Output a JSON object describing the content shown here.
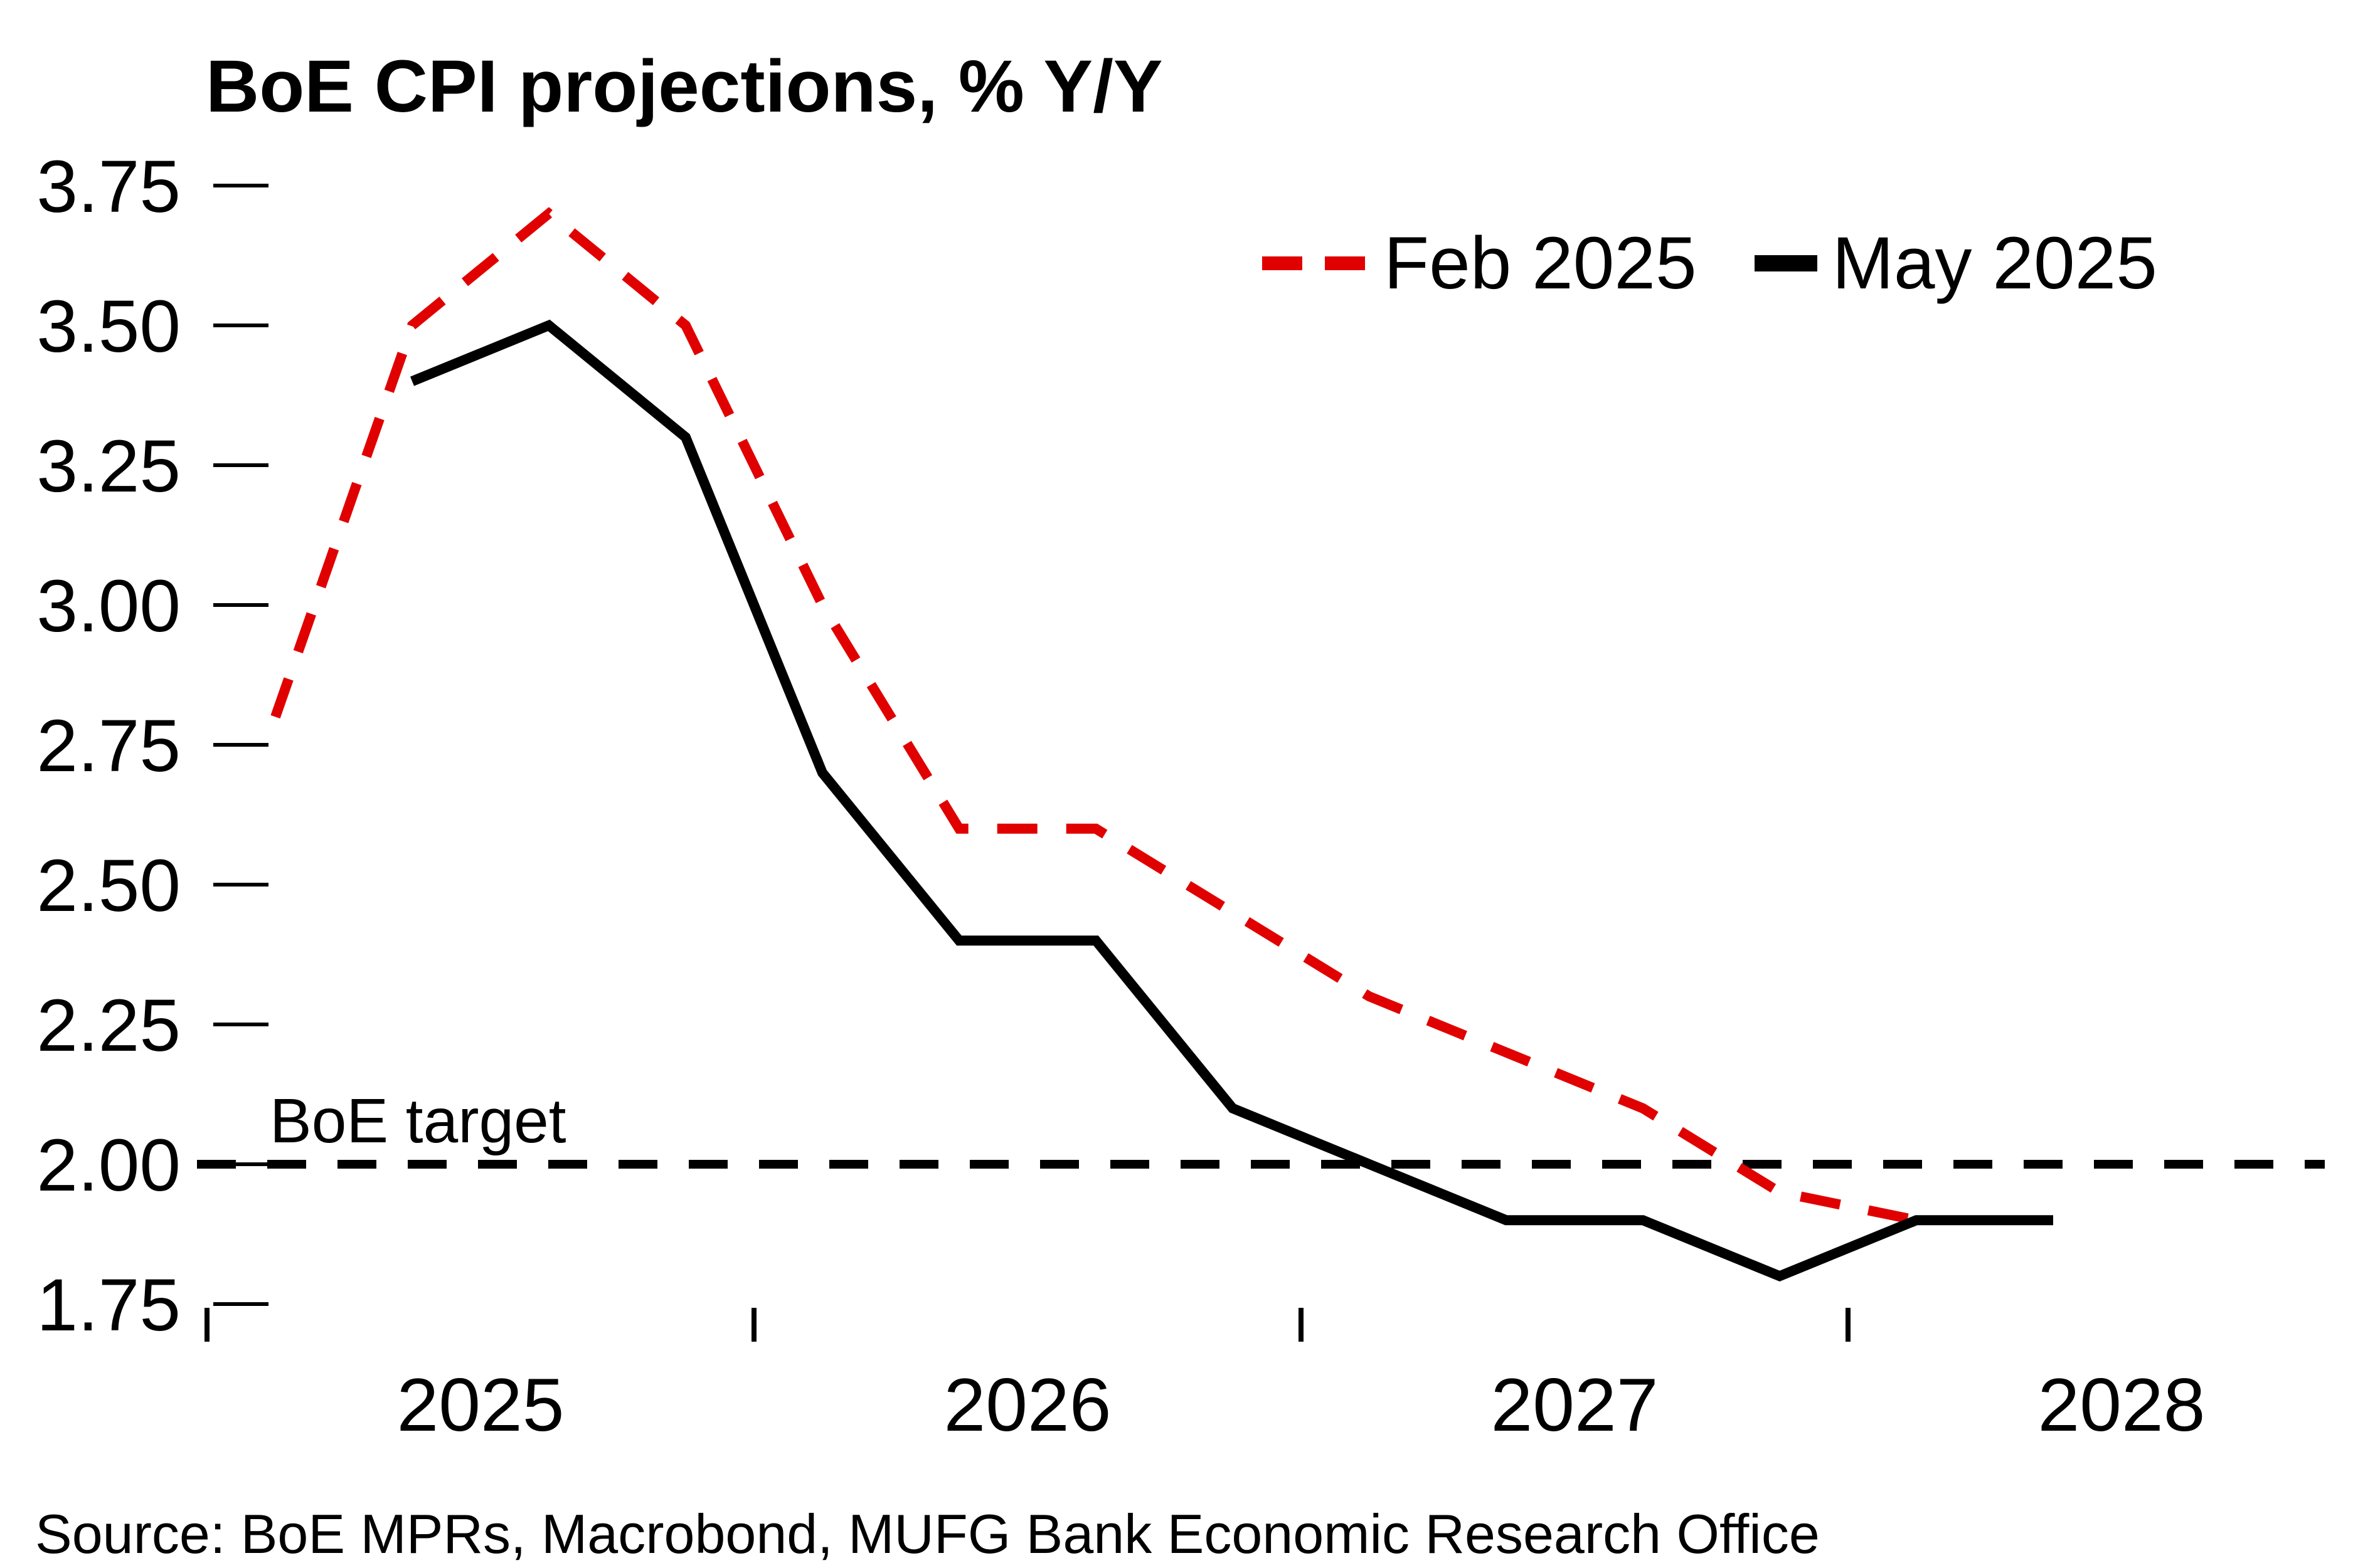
{
  "title": "BoE CPI projections, % Y/Y",
  "source": "Source: BoE MPRs, Macrobond, MUFG Bank Economic Research Office",
  "target_label": "BoE target",
  "legend": {
    "feb_label": "Feb 2025",
    "may_label": "May 2025"
  },
  "colors": {
    "feb": "#e00000",
    "may": "#000000",
    "target": "#000000",
    "axis": "#000000",
    "background": "#ffffff"
  },
  "chart_data": {
    "type": "line",
    "title": "BoE CPI projections, % Y/Y",
    "xlabel": "",
    "ylabel": "",
    "ylim": [
      1.75,
      3.75
    ],
    "yticks": [
      "3.75",
      "3.50",
      "3.25",
      "3.00",
      "2.75",
      "2.50",
      "2.25",
      "2.00",
      "1.75"
    ],
    "ytick_values": [
      3.75,
      3.5,
      3.25,
      3.0,
      2.75,
      2.5,
      2.25,
      2.0,
      1.75
    ],
    "xticks": [
      2025,
      2026,
      2027,
      2028
    ],
    "grid": false,
    "legend_position": "top-right",
    "target_line": {
      "label": "BoE target",
      "value": 2.0,
      "style": "dashed"
    },
    "series": [
      {
        "name": "Feb 2025",
        "style": "dashed",
        "color": "#e00000",
        "quarters": [
          "2025Q1",
          "2025Q2",
          "2025Q3",
          "2025Q4",
          "2026Q1",
          "2026Q2",
          "2026Q3",
          "2026Q4",
          "2027Q1",
          "2027Q2",
          "2027Q3",
          "2027Q4",
          "2028Q1"
        ],
        "values": [
          2.8,
          3.5,
          3.7,
          3.5,
          3.0,
          2.6,
          2.6,
          2.45,
          2.3,
          2.2,
          2.1,
          1.95,
          1.9
        ]
      },
      {
        "name": "May 2025",
        "style": "solid",
        "color": "#000000",
        "quarters": [
          "2025Q2",
          "2025Q3",
          "2025Q4",
          "2026Q1",
          "2026Q2",
          "2026Q3",
          "2026Q4",
          "2027Q1",
          "2027Q2",
          "2027Q3",
          "2027Q4",
          "2028Q1",
          "2028Q2"
        ],
        "values": [
          3.4,
          3.5,
          3.3,
          2.7,
          2.4,
          2.4,
          2.1,
          2.0,
          1.9,
          1.9,
          1.8,
          1.9,
          1.9
        ]
      }
    ]
  }
}
